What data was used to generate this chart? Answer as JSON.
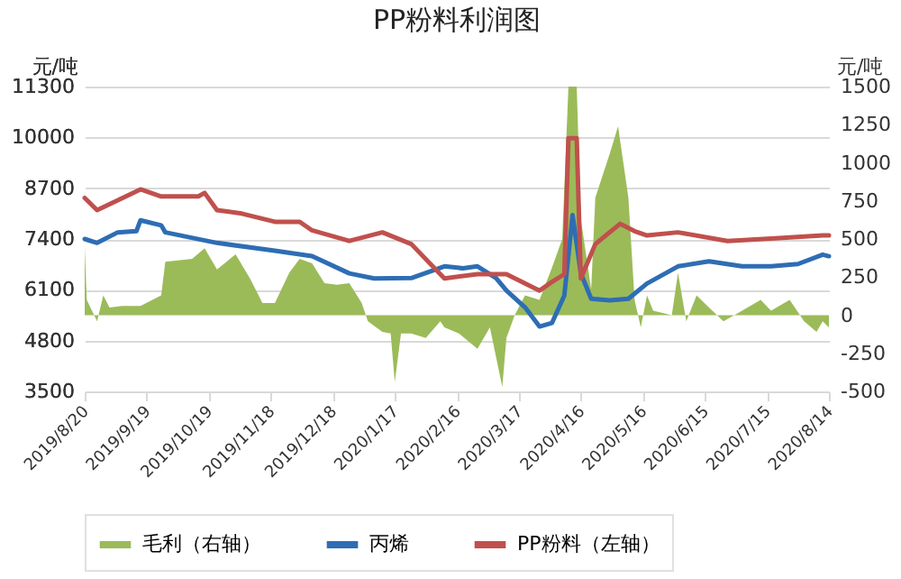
{
  "chart_data": {
    "type": "line",
    "title": "PP粉料利润图",
    "ylabel": "元/吨",
    "y2label": "元/吨",
    "xlim": [
      "2019-08-20",
      "2020-08-14"
    ],
    "xticks": [
      {
        "value": "2019-08-20",
        "label": "2019/8/20"
      },
      {
        "value": "2019-09-19",
        "label": "2019/9/19"
      },
      {
        "value": "2019-10-19",
        "label": "2019/10/19"
      },
      {
        "value": "2019-11-18",
        "label": "2019/11/18"
      },
      {
        "value": "2019-12-18",
        "label": "2019/12/18"
      },
      {
        "value": "2020-01-17",
        "label": "2020/1/17"
      },
      {
        "value": "2020-02-16",
        "label": "2020/2/16"
      },
      {
        "value": "2020-03-17",
        "label": "2020/3/17"
      },
      {
        "value": "2020-04-16",
        "label": "2020/4/16"
      },
      {
        "value": "2020-05-16",
        "label": "2020/5/16"
      },
      {
        "value": "2020-06-15",
        "label": "2020/6/15"
      },
      {
        "value": "2020-07-15",
        "label": "2020/7/15"
      },
      {
        "value": "2020-08-14",
        "label": "2020/8/14"
      }
    ],
    "ylim": [
      3500,
      11300
    ],
    "yticks": [
      3500,
      4800,
      6100,
      7400,
      8700,
      10000,
      11300
    ],
    "y2lim": [
      -500,
      1500
    ],
    "y2ticks": [
      -500,
      -250,
      0,
      250,
      500,
      750,
      1000,
      1250,
      1500
    ],
    "grid": "y",
    "legend": "bottom",
    "series": [
      {
        "name": "毛利（右轴）",
        "type": "area",
        "axis": "y2",
        "color": "#9bbb59",
        "x": [
          "2019-08-20",
          "2019-08-21",
          "2019-08-26",
          "2019-08-29",
          "2019-09-01",
          "2019-09-07",
          "2019-09-16",
          "2019-09-26",
          "2019-09-28",
          "2019-10-11",
          "2019-10-17",
          "2019-10-23",
          "2019-11-01",
          "2019-11-08",
          "2019-11-14",
          "2019-11-20",
          "2019-11-27",
          "2019-12-02",
          "2019-12-08",
          "2019-12-14",
          "2019-12-20",
          "2019-12-26",
          "2020-01-01",
          "2020-01-04",
          "2020-01-11",
          "2020-01-15",
          "2020-01-17",
          "2020-01-20",
          "2020-01-25",
          "2020-02-01",
          "2020-02-08",
          "2020-02-10",
          "2020-02-17",
          "2020-02-26",
          "2020-03-03",
          "2020-03-09",
          "2020-03-11",
          "2020-03-15",
          "2020-03-20",
          "2020-03-27",
          "2020-04-02",
          "2020-04-07",
          "2020-04-10",
          "2020-04-14",
          "2020-04-16",
          "2020-04-21",
          "2020-04-23",
          "2020-04-30",
          "2020-05-04",
          "2020-05-09",
          "2020-05-12",
          "2020-05-15",
          "2020-05-18",
          "2020-05-21",
          "2020-05-30",
          "2020-06-02",
          "2020-06-06",
          "2020-06-11",
          "2020-06-17",
          "2020-06-24",
          "2020-07-03",
          "2020-07-12",
          "2020-07-17",
          "2020-07-26",
          "2020-08-02",
          "2020-08-08",
          "2020-08-11",
          "2020-08-14"
        ],
        "values": [
          450,
          100,
          -40,
          130,
          50,
          60,
          60,
          130,
          350,
          370,
          440,
          300,
          400,
          240,
          80,
          80,
          280,
          370,
          340,
          210,
          200,
          210,
          80,
          -40,
          -110,
          -120,
          -440,
          -120,
          -120,
          -150,
          -40,
          -80,
          -120,
          -220,
          -80,
          -470,
          -150,
          0,
          130,
          100,
          310,
          500,
          1500,
          1500,
          630,
          170,
          770,
          1060,
          1240,
          770,
          100,
          -80,
          130,
          30,
          0,
          280,
          -40,
          130,
          50,
          -40,
          30,
          100,
          30,
          100,
          -40,
          -110,
          -40,
          -80
        ]
      },
      {
        "name": "丙烯",
        "color": "#2e6db4",
        "x": [
          "2019-08-20",
          "2019-08-26",
          "2019-09-05",
          "2019-09-14",
          "2019-09-16",
          "2019-09-26",
          "2019-09-28",
          "2019-10-23",
          "2019-11-20",
          "2019-12-08",
          "2019-12-26",
          "2020-01-07",
          "2020-01-25",
          "2020-02-10",
          "2020-02-19",
          "2020-02-26",
          "2020-03-06",
          "2020-03-11",
          "2020-03-20",
          "2020-03-27",
          "2020-04-02",
          "2020-04-08",
          "2020-04-12",
          "2020-04-16",
          "2020-04-21",
          "2020-04-30",
          "2020-05-09",
          "2020-05-18",
          "2020-06-02",
          "2020-06-17",
          "2020-07-03",
          "2020-07-17",
          "2020-07-30",
          "2020-08-11",
          "2020-08-14"
        ],
        "values": [
          7400,
          7300,
          7570,
          7600,
          7880,
          7750,
          7570,
          7300,
          7100,
          6960,
          6520,
          6390,
          6400,
          6700,
          6650,
          6700,
          6400,
          6080,
          5650,
          5160,
          5250,
          5950,
          8010,
          6520,
          5870,
          5830,
          5870,
          6260,
          6700,
          6830,
          6700,
          6700,
          6760,
          7000,
          6960
        ]
      },
      {
        "name": "PP粉料（左轴）",
        "color": "#c0504d",
        "x": [
          "2019-08-20",
          "2019-08-26",
          "2019-09-16",
          "2019-09-26",
          "2019-10-14",
          "2019-10-17",
          "2019-10-23",
          "2019-11-04",
          "2019-11-20",
          "2019-12-02",
          "2019-12-08",
          "2019-12-26",
          "2020-01-11",
          "2020-01-25",
          "2020-02-10",
          "2020-02-26",
          "2020-03-11",
          "2020-03-27",
          "2020-04-02",
          "2020-04-08",
          "2020-04-10",
          "2020-04-14",
          "2020-04-16",
          "2020-04-23",
          "2020-05-05",
          "2020-05-12",
          "2020-05-18",
          "2020-06-02",
          "2020-06-26",
          "2020-07-19",
          "2020-08-11",
          "2020-08-14"
        ],
        "values": [
          8450,
          8140,
          8670,
          8490,
          8490,
          8580,
          8140,
          8050,
          7840,
          7840,
          7620,
          7350,
          7570,
          7270,
          6390,
          6500,
          6500,
          6080,
          6300,
          6500,
          9980,
          9980,
          6390,
          7270,
          7790,
          7600,
          7490,
          7570,
          7350,
          7420,
          7490,
          7490
        ]
      }
    ]
  }
}
